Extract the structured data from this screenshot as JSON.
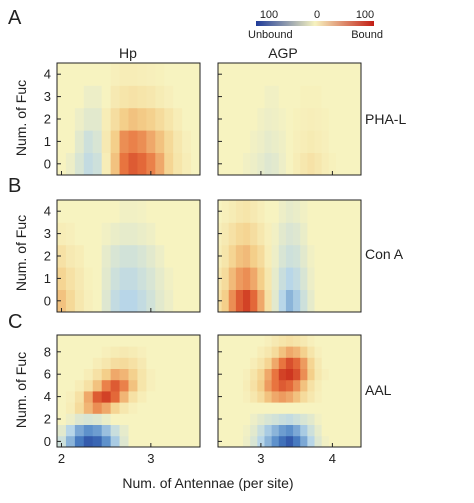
{
  "figure": {
    "columns": [
      "Hp",
      "AGP"
    ],
    "row_letters": [
      "A",
      "B",
      "C"
    ],
    "row_lectins": [
      "PHA-L",
      "Con A",
      "AAL"
    ],
    "ylabel": "Num. of Fuc",
    "xlabel": "Num. of Antennae (per site)",
    "colorbar": {
      "min_label": "100",
      "mid_label": "0",
      "max_label": "100",
      "left_label": "Unbound",
      "right_label": "Bound",
      "range": [
        -100,
        100
      ],
      "colors": {
        "low": "#1f3b99",
        "mid": "#f7f3c0",
        "high": "#c21d14"
      }
    }
  },
  "chart_data": [
    {
      "type": "heatmap",
      "panel": "A",
      "column": "Hp",
      "row_label": "PHA-L",
      "ylabel": "Num. of Fuc",
      "x_ticks": [
        2,
        3
      ],
      "y_ticks": [
        0,
        1,
        2,
        3,
        4
      ],
      "xlim": [
        1.95,
        3.55
      ],
      "ylim": [
        -0.5,
        4.5
      ],
      "x": [
        2.0,
        2.1,
        2.2,
        2.3,
        2.4,
        2.5,
        2.6,
        2.7,
        2.8,
        2.9,
        3.0,
        3.1,
        3.2,
        3.3,
        3.4,
        3.5
      ],
      "y": [
        0,
        1,
        2,
        3,
        4
      ],
      "values": [
        [
          0,
          -5,
          -15,
          -25,
          -20,
          5,
          35,
          65,
          75,
          70,
          60,
          45,
          25,
          12,
          5,
          0
        ],
        [
          0,
          0,
          -10,
          -20,
          -15,
          8,
          30,
          55,
          60,
          55,
          45,
          35,
          22,
          10,
          3,
          0
        ],
        [
          0,
          0,
          -5,
          -10,
          -10,
          5,
          18,
          30,
          35,
          32,
          28,
          20,
          12,
          5,
          0,
          0
        ],
        [
          0,
          0,
          0,
          -5,
          -5,
          0,
          8,
          12,
          14,
          12,
          10,
          6,
          3,
          0,
          0,
          0
        ],
        [
          0,
          0,
          0,
          0,
          0,
          0,
          3,
          5,
          5,
          4,
          3,
          2,
          0,
          0,
          0,
          0
        ]
      ]
    },
    {
      "type": "heatmap",
      "panel": "A",
      "column": "AGP",
      "row_label": "PHA-L",
      "x_ticks": [
        3,
        4
      ],
      "y_ticks": [
        0,
        1,
        2,
        3,
        4
      ],
      "xlim": [
        2.4,
        4.4
      ],
      "ylim": [
        -0.5,
        4.5
      ],
      "x": [
        2.4,
        2.5,
        2.6,
        2.7,
        2.8,
        2.9,
        3.0,
        3.1,
        3.2,
        3.3,
        3.4,
        3.5,
        3.6,
        3.7,
        3.8,
        3.9,
        4.0,
        4.1,
        4.2,
        4.3,
        4.4
      ],
      "y": [
        0,
        1,
        2,
        3,
        4
      ],
      "values": [
        [
          0,
          0,
          0,
          0,
          -3,
          -5,
          -8,
          -12,
          -10,
          -5,
          0,
          5,
          10,
          14,
          10,
          5,
          2,
          0,
          0,
          0,
          0
        ],
        [
          0,
          0,
          0,
          0,
          0,
          -3,
          -5,
          -8,
          -6,
          -4,
          0,
          3,
          5,
          7,
          5,
          3,
          0,
          0,
          0,
          0,
          0
        ],
        [
          0,
          0,
          0,
          0,
          0,
          0,
          -3,
          -5,
          -4,
          -2,
          0,
          2,
          3,
          4,
          3,
          2,
          0,
          0,
          0,
          0,
          0
        ],
        [
          0,
          0,
          0,
          0,
          0,
          0,
          0,
          -3,
          -3,
          0,
          0,
          0,
          2,
          2,
          2,
          0,
          0,
          0,
          0,
          0,
          0
        ],
        [
          0,
          0,
          0,
          0,
          0,
          0,
          0,
          0,
          0,
          0,
          0,
          0,
          0,
          0,
          0,
          0,
          0,
          0,
          0,
          0,
          0
        ]
      ]
    },
    {
      "type": "heatmap",
      "panel": "B",
      "column": "Hp",
      "row_label": "Con A",
      "ylabel": "Num. of Fuc",
      "x_ticks": [
        2,
        3
      ],
      "y_ticks": [
        0,
        1,
        2,
        3,
        4
      ],
      "xlim": [
        1.95,
        3.55
      ],
      "ylim": [
        -0.5,
        4.5
      ],
      "x": [
        2.0,
        2.1,
        2.2,
        2.3,
        2.4,
        2.5,
        2.6,
        2.7,
        2.8,
        2.9,
        3.0,
        3.1,
        3.2,
        3.3,
        3.4,
        3.5
      ],
      "y": [
        0,
        1,
        2,
        3,
        4
      ],
      "values": [
        [
          35,
          22,
          10,
          3,
          0,
          -12,
          -25,
          -30,
          -30,
          -25,
          -18,
          -10,
          -5,
          0,
          0,
          0
        ],
        [
          25,
          15,
          8,
          2,
          0,
          -10,
          -20,
          -25,
          -25,
          -20,
          -15,
          -8,
          -3,
          0,
          0,
          0
        ],
        [
          15,
          8,
          5,
          0,
          0,
          -8,
          -15,
          -18,
          -18,
          -15,
          -10,
          -5,
          0,
          0,
          0,
          0
        ],
        [
          5,
          3,
          0,
          0,
          0,
          -3,
          -6,
          -8,
          -8,
          -6,
          -4,
          0,
          0,
          0,
          0,
          0
        ],
        [
          0,
          0,
          0,
          0,
          0,
          0,
          0,
          -3,
          -3,
          -2,
          0,
          0,
          0,
          0,
          0,
          0
        ]
      ]
    },
    {
      "type": "heatmap",
      "panel": "B",
      "column": "AGP",
      "row_label": "Con A",
      "x_ticks": [],
      "y_ticks": [
        0,
        1,
        2,
        3,
        4
      ],
      "xlim": [
        2.4,
        4.4
      ],
      "ylim": [
        -0.5,
        4.5
      ],
      "x": [
        2.4,
        2.5,
        2.6,
        2.7,
        2.8,
        2.9,
        3.0,
        3.1,
        3.2,
        3.3,
        3.4,
        3.5,
        3.6,
        3.7,
        3.8,
        3.9,
        4.0,
        4.1,
        4.2,
        4.3,
        4.4
      ],
      "y": [
        0,
        1,
        2,
        3,
        4
      ],
      "values": [
        [
          15,
          30,
          55,
          75,
          85,
          70,
          45,
          15,
          -10,
          -30,
          -45,
          -35,
          -20,
          -8,
          0,
          0,
          0,
          0,
          0,
          0,
          0
        ],
        [
          10,
          20,
          38,
          50,
          55,
          45,
          30,
          10,
          -8,
          -22,
          -30,
          -25,
          -15,
          -5,
          0,
          0,
          0,
          0,
          0,
          0,
          0
        ],
        [
          5,
          12,
          25,
          35,
          38,
          30,
          20,
          5,
          -5,
          -15,
          -20,
          -18,
          -10,
          -3,
          0,
          0,
          0,
          0,
          0,
          0,
          0
        ],
        [
          3,
          8,
          15,
          22,
          25,
          18,
          10,
          3,
          -3,
          -10,
          -14,
          -12,
          -6,
          0,
          0,
          0,
          0,
          0,
          0,
          0,
          0
        ],
        [
          0,
          3,
          6,
          10,
          12,
          8,
          4,
          0,
          0,
          -5,
          -8,
          -6,
          -3,
          0,
          0,
          0,
          0,
          0,
          0,
          0,
          0
        ]
      ]
    },
    {
      "type": "heatmap",
      "panel": "C",
      "column": "Hp",
      "row_label": "AAL",
      "ylabel": "Num. of Fuc",
      "x_ticks": [
        2,
        3
      ],
      "y_ticks": [
        0,
        2,
        4,
        6,
        8
      ],
      "xlim": [
        1.95,
        3.55
      ],
      "ylim": [
        -0.5,
        9.5
      ],
      "x": [
        2.0,
        2.1,
        2.2,
        2.3,
        2.4,
        2.5,
        2.6,
        2.7,
        2.8,
        2.9,
        3.0,
        3.1,
        3.2,
        3.3,
        3.4,
        3.5
      ],
      "y": [
        0,
        1,
        2,
        3,
        4,
        5,
        6,
        7,
        8,
        9
      ],
      "values": [
        [
          -20,
          -45,
          -70,
          -85,
          -80,
          -60,
          -35,
          -12,
          0,
          0,
          0,
          0,
          0,
          0,
          0,
          0
        ],
        [
          -10,
          -30,
          -50,
          -60,
          -55,
          -40,
          -22,
          -8,
          0,
          0,
          0,
          0,
          0,
          0,
          0,
          0
        ],
        [
          0,
          -5,
          -12,
          -15,
          -12,
          -6,
          0,
          0,
          0,
          0,
          0,
          0,
          0,
          0,
          0,
          0
        ],
        [
          0,
          5,
          20,
          40,
          55,
          45,
          25,
          10,
          3,
          0,
          0,
          0,
          0,
          0,
          0,
          0
        ],
        [
          0,
          3,
          15,
          45,
          75,
          85,
          70,
          40,
          15,
          5,
          0,
          0,
          0,
          0,
          0,
          0
        ],
        [
          0,
          0,
          5,
          15,
          35,
          60,
          75,
          60,
          35,
          12,
          3,
          0,
          0,
          0,
          0,
          0
        ],
        [
          0,
          0,
          0,
          5,
          15,
          30,
          45,
          40,
          28,
          12,
          3,
          0,
          0,
          0,
          0,
          0
        ],
        [
          0,
          0,
          0,
          0,
          5,
          10,
          18,
          20,
          15,
          8,
          0,
          0,
          0,
          0,
          0,
          0
        ],
        [
          0,
          0,
          0,
          0,
          0,
          3,
          6,
          8,
          6,
          3,
          0,
          0,
          0,
          0,
          0,
          0
        ],
        [
          0,
          0,
          0,
          0,
          0,
          0,
          0,
          0,
          0,
          0,
          0,
          0,
          0,
          0,
          0,
          0
        ]
      ]
    },
    {
      "type": "heatmap",
      "panel": "C",
      "column": "AGP",
      "row_label": "AAL",
      "x_ticks": [
        3,
        4
      ],
      "y_ticks": [
        0,
        2,
        4,
        6,
        8
      ],
      "xlim": [
        2.4,
        4.4
      ],
      "ylim": [
        -0.5,
        9.5
      ],
      "x": [
        2.4,
        2.5,
        2.6,
        2.7,
        2.8,
        2.9,
        3.0,
        3.1,
        3.2,
        3.3,
        3.4,
        3.5,
        3.6,
        3.7,
        3.8,
        3.9,
        4.0,
        4.1,
        4.2,
        4.3,
        4.4
      ],
      "y": [
        0,
        1,
        2,
        3,
        4,
        5,
        6,
        7,
        8,
        9
      ],
      "values": [
        [
          0,
          0,
          0,
          0,
          -5,
          -15,
          -30,
          -45,
          -60,
          -75,
          -85,
          -70,
          -50,
          -30,
          -12,
          -3,
          0,
          0,
          0,
          0,
          0
        ],
        [
          0,
          0,
          0,
          0,
          -3,
          -10,
          -22,
          -35,
          -45,
          -55,
          -60,
          -50,
          -35,
          -20,
          -8,
          0,
          0,
          0,
          0,
          0,
          0
        ],
        [
          0,
          0,
          0,
          0,
          0,
          -5,
          -10,
          -15,
          -18,
          -22,
          -25,
          -20,
          -15,
          -10,
          -3,
          0,
          0,
          0,
          0,
          0,
          0
        ],
        [
          0,
          0,
          0,
          0,
          0,
          0,
          0,
          0,
          0,
          0,
          0,
          0,
          0,
          0,
          0,
          0,
          0,
          0,
          0,
          0,
          0
        ],
        [
          0,
          0,
          0,
          0,
          3,
          10,
          20,
          35,
          45,
          50,
          45,
          35,
          20,
          10,
          3,
          0,
          0,
          0,
          0,
          0,
          0
        ],
        [
          0,
          0,
          0,
          0,
          5,
          15,
          30,
          50,
          65,
          75,
          70,
          55,
          35,
          15,
          5,
          0,
          0,
          0,
          0,
          0,
          0
        ],
        [
          0,
          0,
          0,
          0,
          3,
          12,
          25,
          45,
          65,
          85,
          90,
          80,
          55,
          30,
          10,
          3,
          0,
          0,
          0,
          0,
          0
        ],
        [
          0,
          0,
          0,
          0,
          0,
          5,
          12,
          25,
          45,
          65,
          80,
          70,
          50,
          25,
          8,
          0,
          0,
          0,
          0,
          0,
          0
        ],
        [
          0,
          0,
          0,
          0,
          0,
          0,
          5,
          10,
          20,
          35,
          45,
          40,
          28,
          12,
          3,
          0,
          0,
          0,
          0,
          0,
          0
        ],
        [
          0,
          0,
          0,
          0,
          0,
          0,
          0,
          3,
          8,
          12,
          15,
          12,
          8,
          3,
          0,
          0,
          0,
          0,
          0,
          0,
          0
        ]
      ]
    }
  ]
}
